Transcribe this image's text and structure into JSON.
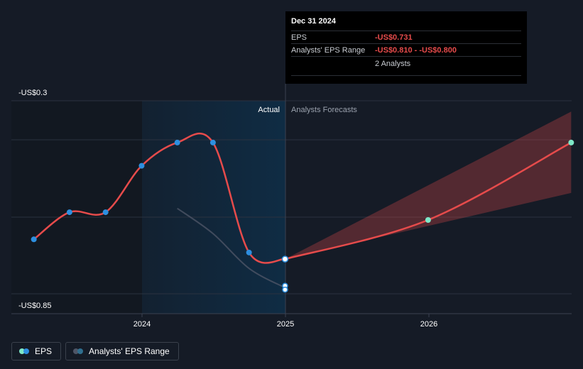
{
  "chart_data": {
    "type": "line",
    "ylabel_top": "-US$0.3",
    "ylabel_bottom": "-US$0.85",
    "ylim": [
      -0.85,
      -0.3
    ],
    "x_ticks": [
      "2024",
      "2025",
      "2026"
    ],
    "region_labels": {
      "actual": "Actual",
      "forecast": "Analysts Forecasts"
    },
    "series": [
      {
        "name": "EPS",
        "color": "#e64b4b",
        "points": [
          {
            "x": "2023-03-31",
            "y": -0.68
          },
          {
            "x": "2023-06-30",
            "y": -0.61
          },
          {
            "x": "2023-09-30",
            "y": -0.61
          },
          {
            "x": "2023-12-31",
            "y": -0.49
          },
          {
            "x": "2024-03-31",
            "y": -0.43
          },
          {
            "x": "2024-06-30",
            "y": -0.43
          },
          {
            "x": "2024-09-30",
            "y": -0.714
          },
          {
            "x": "2024-12-31",
            "y": -0.731
          }
        ]
      },
      {
        "name": "EPS forecast",
        "color": "#e64b4b",
        "points": [
          {
            "x": "2024-12-31",
            "y": -0.731
          },
          {
            "x": "2025-12-31",
            "y": -0.63
          },
          {
            "x": "2026-12-31",
            "y": -0.43
          }
        ]
      },
      {
        "name": "Analysts' EPS Range",
        "color": "#4e5566",
        "points": [
          {
            "x": "2024-03-31",
            "y": -0.6
          },
          {
            "x": "2024-06-30",
            "y": -0.665
          },
          {
            "x": "2024-09-30",
            "y": -0.755
          },
          {
            "x": "2024-12-31",
            "y": -0.805
          }
        ]
      }
    ],
    "forecast_band": {
      "color": "#e64b4b",
      "upper": [
        {
          "x": "2024-12-31",
          "y": -0.731
        },
        {
          "x": "2026-12-31",
          "y": -0.35
        }
      ],
      "lower": [
        {
          "x": "2024-12-31",
          "y": -0.731
        },
        {
          "x": "2026-12-31",
          "y": -0.56
        }
      ]
    },
    "range_points": [
      {
        "x": "2024-12-31",
        "y": -0.8
      },
      {
        "x": "2024-12-31",
        "y": -0.81
      }
    ]
  },
  "tooltip": {
    "date": "Dec 31 2024",
    "eps_label": "EPS",
    "eps_value": "-US$0.731",
    "range_label": "Analysts' EPS Range",
    "range_value": "-US$0.810 - -US$0.800",
    "analysts": "2 Analysts"
  },
  "legend": {
    "eps_label": "EPS",
    "range_label": "Analysts' EPS Range"
  },
  "colors": {
    "background": "#151b26",
    "actual_shade": "#0f2c44",
    "eps_line": "#e64b4b",
    "dot_actual": "#2d8fe0",
    "dot_forecast": "#7ee8c8"
  }
}
